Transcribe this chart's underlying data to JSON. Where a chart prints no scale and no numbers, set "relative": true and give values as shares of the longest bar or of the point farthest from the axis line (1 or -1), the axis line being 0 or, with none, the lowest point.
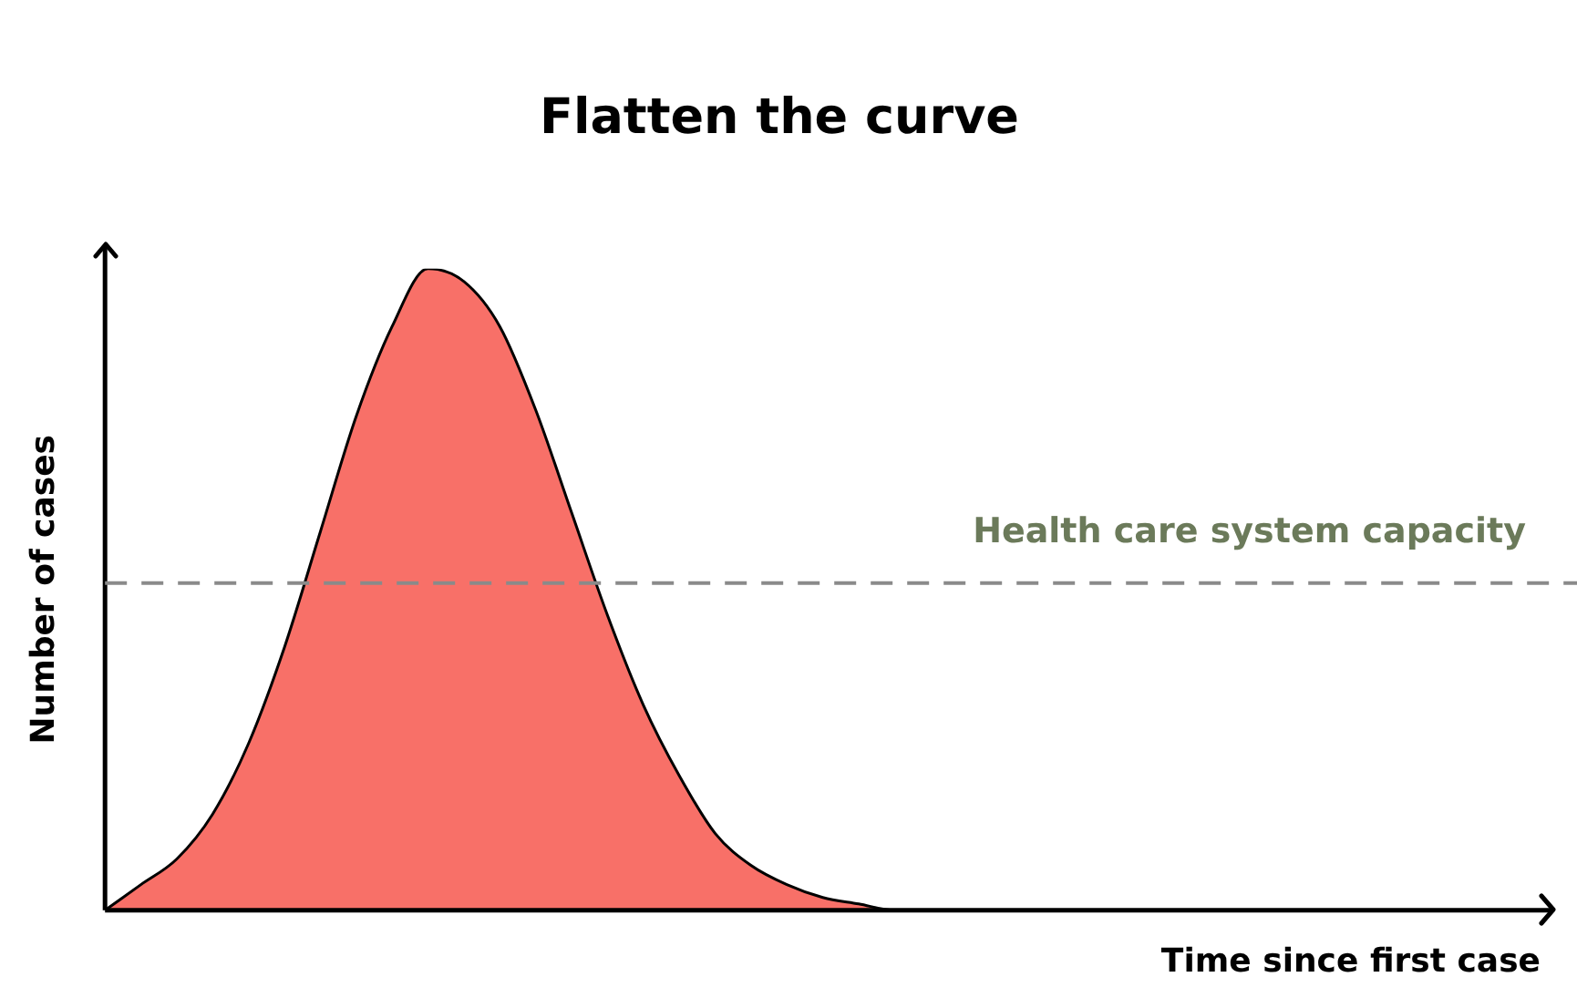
{
  "chart_data": {
    "type": "area",
    "title": "Flatten the curve",
    "xlabel": "Time since first case",
    "ylabel": "Number of cases",
    "relative": true,
    "marker": "none",
    "grid": false,
    "legend": false,
    "color": "#f87068",
    "categories": [
      null,
      null,
      null,
      null,
      null,
      null,
      null,
      null,
      null,
      null,
      null,
      null,
      null,
      null,
      null,
      null,
      null,
      null,
      null,
      null,
      null,
      null,
      null,
      null,
      null,
      null,
      null,
      null,
      null,
      null,
      null,
      null,
      null,
      null,
      null,
      null,
      null,
      null,
      null,
      null,
      null
    ],
    "values": [
      0,
      0.04,
      0.08,
      0.15,
      0.26,
      0.41,
      0.59,
      0.77,
      0.91,
      1,
      0.98,
      0.91,
      0.78,
      0.62,
      0.46,
      0.32,
      0.21,
      0.12,
      0.07,
      0.04,
      0.02,
      0.01,
      0,
      0,
      null,
      null,
      null,
      null,
      null,
      null,
      null,
      null,
      null,
      null,
      null,
      null,
      null,
      null,
      null,
      null,
      null
    ],
    "ref_lines": [
      {
        "axis": "y",
        "value": 0.51,
        "label": "Health care system capacity",
        "color": "#8a8a8a",
        "line_style": "dashed"
      }
    ]
  }
}
